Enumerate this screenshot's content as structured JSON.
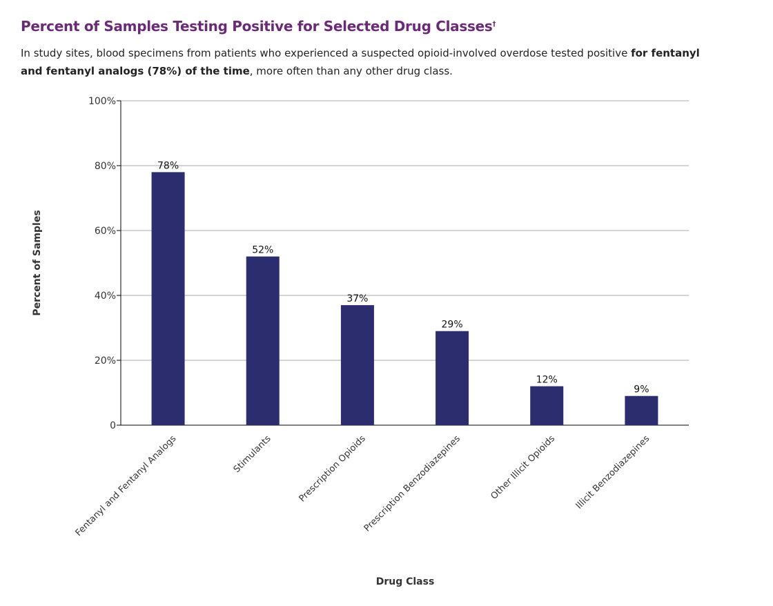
{
  "header": {
    "title": "Percent of Samples Testing Positive for Selected Drug Classes",
    "title_mark": "†",
    "desc_pre": "In study sites, blood specimens from patients who experienced a suspected opioid-involved overdose tested positive ",
    "desc_bold": "for fentanyl and fentanyl analogs (78%) of the time",
    "desc_post": ", more often than any other drug class."
  },
  "chart_data": {
    "type": "bar",
    "categories": [
      "Fentanyl and Fentanyl Analogs",
      "Stimulants",
      "Prescription Opioids",
      "Prescription Benzodiazepines",
      "Other Illicit Opioids",
      "Illicit Benzodiazepines"
    ],
    "values": [
      78,
      52,
      37,
      29,
      12,
      9
    ],
    "data_labels": [
      "78%",
      "52%",
      "37%",
      "29%",
      "12%",
      "9%"
    ],
    "xlabel": "Drug Class",
    "ylabel": "Percent of Samples",
    "ylim": [
      0,
      100
    ],
    "yticks": [
      0,
      20,
      40,
      60,
      80,
      100
    ],
    "ytick_labels": [
      "0",
      "20%",
      "40%",
      "60%",
      "80%",
      "100%"
    ],
    "grid": true,
    "bar_color": "#2b2d6e"
  }
}
